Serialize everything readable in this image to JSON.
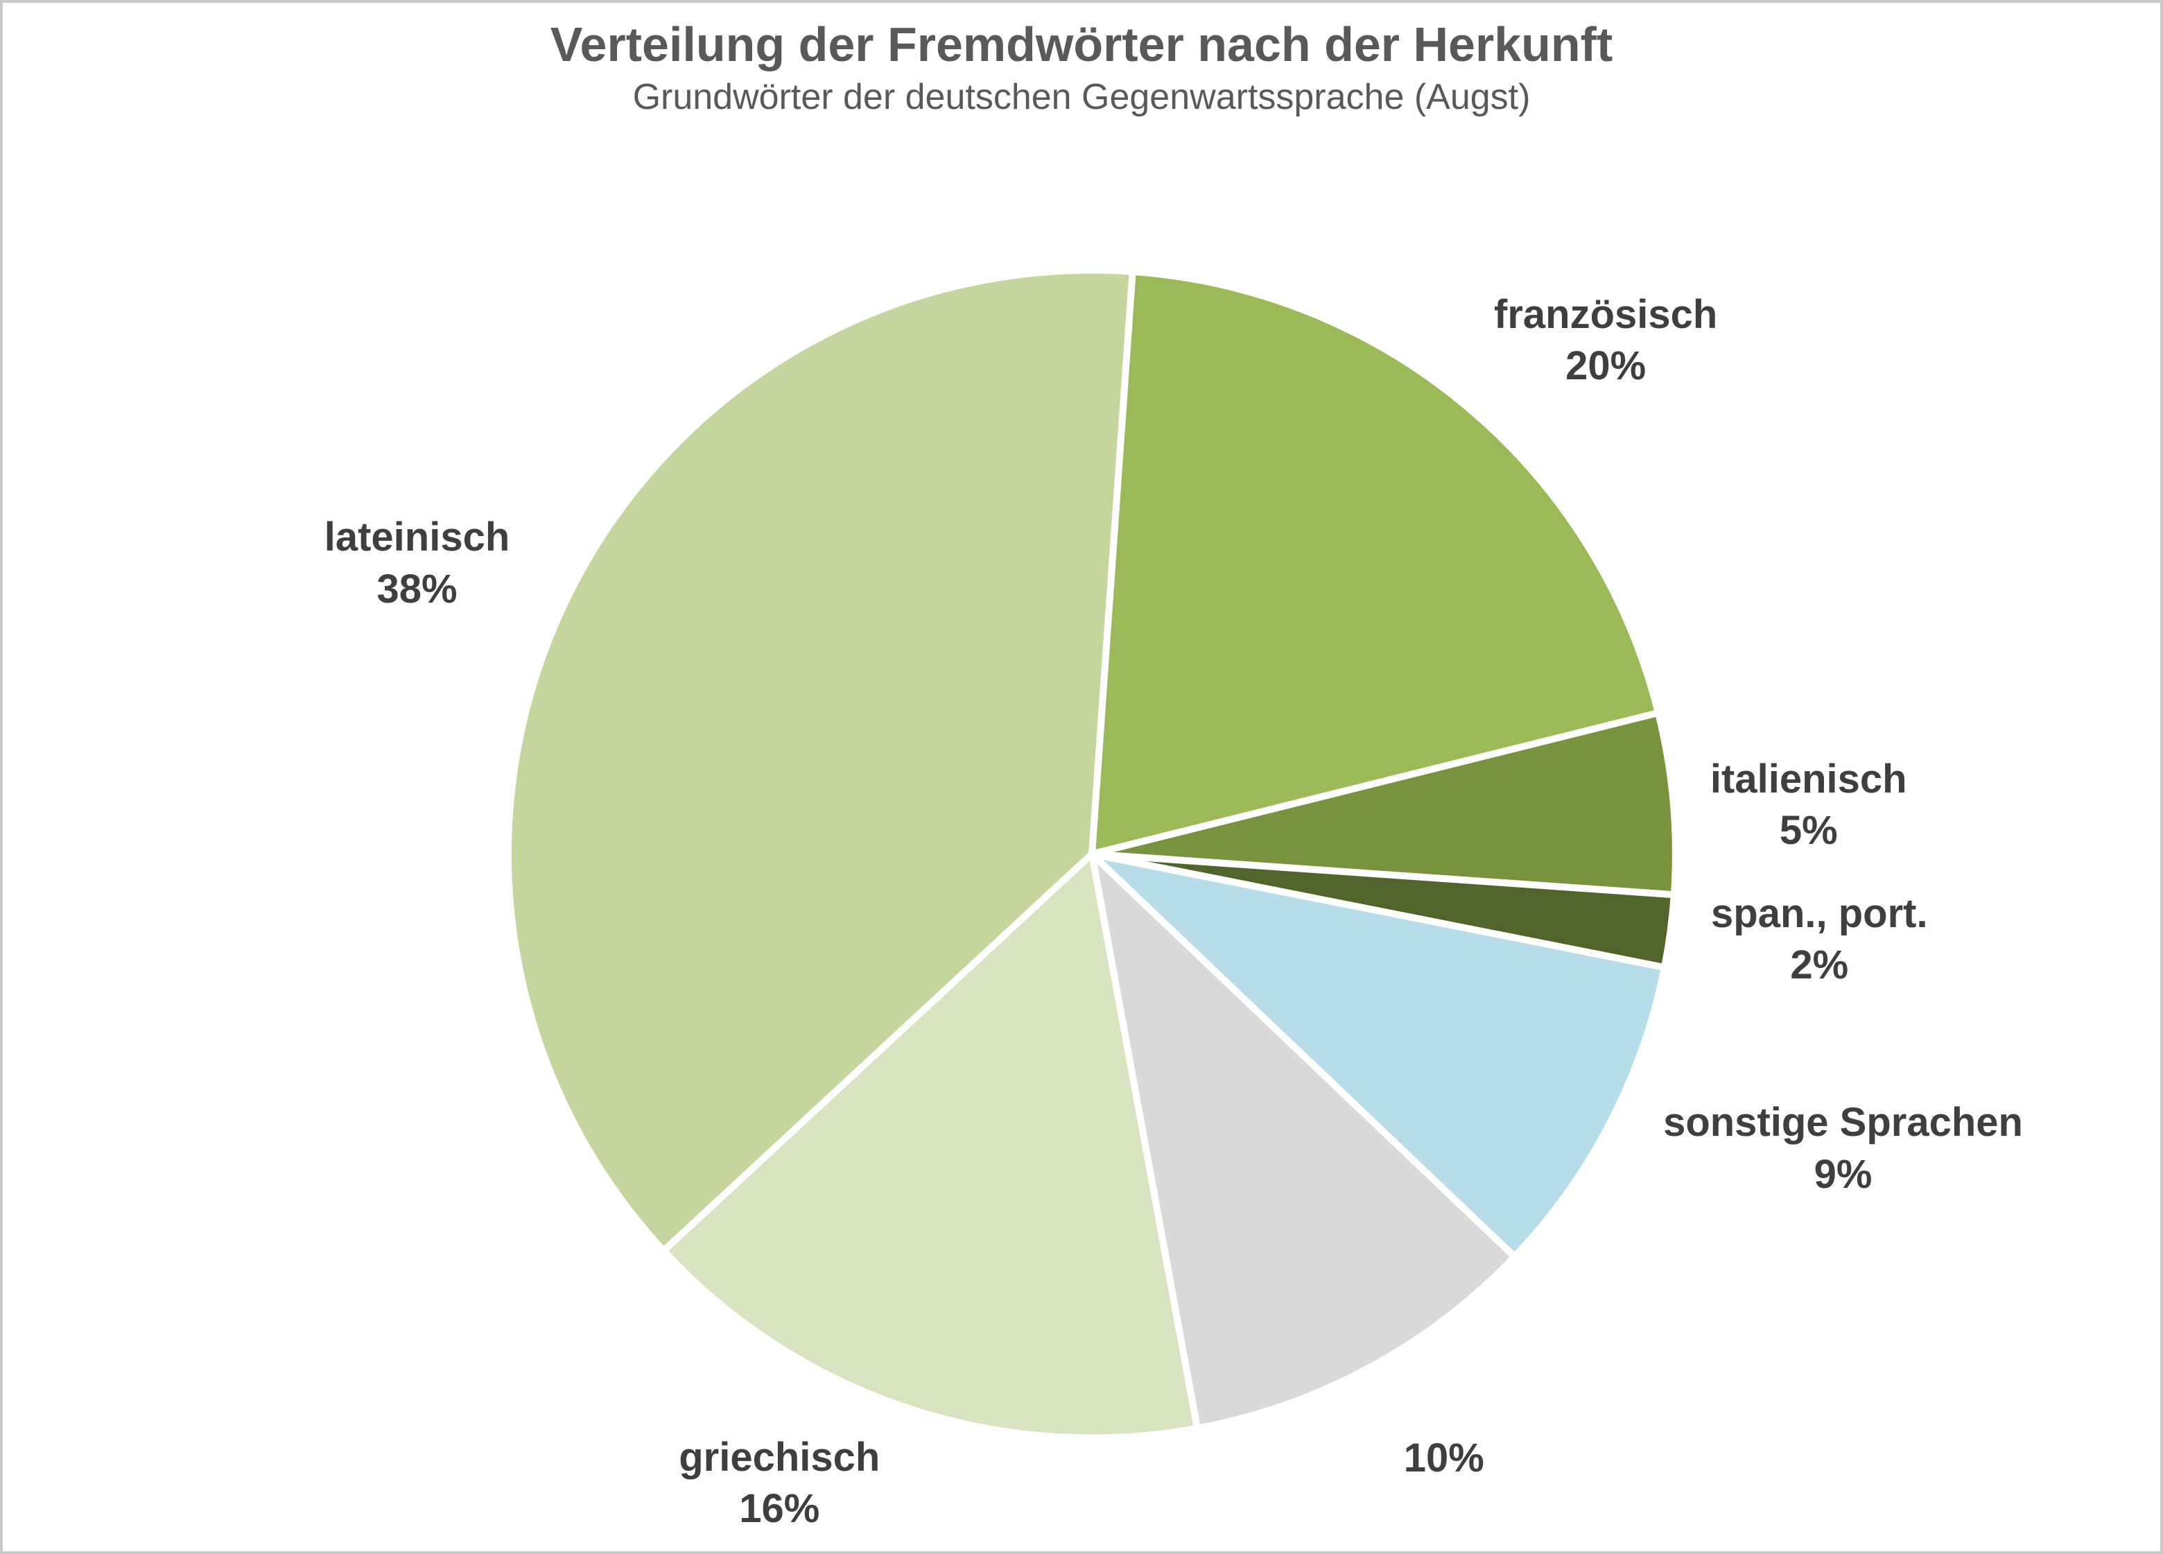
{
  "chart_data": {
    "type": "pie",
    "title": "Verteilung der Fremdwörter nach der Herkunft",
    "subtitle": "Grundwörter der deutschen Gegenwartssprache (Augst)",
    "legend": "none",
    "direction": "clockwise",
    "start_angle_deg": 4,
    "separator_color": "#ffffff",
    "title_color": "#595959",
    "label_color": "#3f3f3f",
    "slices": [
      {
        "id": "franzoesisch",
        "label": "französisch",
        "value": 20,
        "pct_label": "20%",
        "color": "#9aba57"
      },
      {
        "id": "italienisch",
        "label": "italienisch",
        "value": 5,
        "pct_label": "5%",
        "color": "#78933d"
      },
      {
        "id": "span-port",
        "label": "span., port.",
        "value": 2,
        "pct_label": "2%",
        "color": "#50642b"
      },
      {
        "id": "sonstige-sprachen",
        "label": "sonstige Sprachen",
        "value": 9,
        "pct_label": "9%",
        "color": "#b6dde9"
      },
      {
        "id": "unlabeled",
        "label": "",
        "value": 10,
        "pct_label": "10%",
        "color": "#d9d9d9"
      },
      {
        "id": "griechisch",
        "label": "griechisch",
        "value": 16,
        "pct_label": "16%",
        "color": "#d8e4c0"
      },
      {
        "id": "lateinisch",
        "label": "lateinisch",
        "value": 38,
        "pct_label": "38%",
        "color": "#c4d59d"
      }
    ]
  }
}
